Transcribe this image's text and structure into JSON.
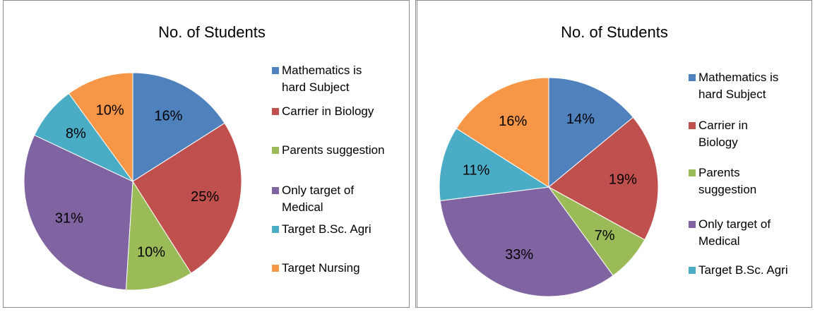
{
  "chart_data": [
    {
      "type": "pie",
      "title": "No. of Students",
      "categories": [
        "Mathematics is hard Subject",
        "Carrier in Biology",
        "Parents suggestion",
        "Only target of Medical",
        "Target B.Sc. Agri",
        "Target Nursing"
      ],
      "values": [
        16,
        25,
        10,
        31,
        8,
        10
      ],
      "value_labels": [
        "16%",
        "25%",
        "10%",
        "31%",
        "8%",
        "10%"
      ],
      "colors": [
        "#4f81bd",
        "#c0504d",
        "#9bbb59",
        "#8064a2",
        "#4bacc6",
        "#f79646"
      ]
    },
    {
      "type": "pie",
      "title": "No. of Students",
      "categories": [
        "Mathematics is hard Subject",
        "Carrier in Biology",
        "Parents suggestion",
        "Only target of Medical",
        "Target B.Sc. Agri",
        null
      ],
      "values": [
        14,
        19,
        7,
        33,
        11,
        16
      ],
      "value_labels": [
        "14%",
        "19%",
        "7%",
        "33%",
        "11%",
        "16%"
      ],
      "colors": [
        "#4f81bd",
        "#c0504d",
        "#9bbb59",
        "#8064a2",
        "#4bacc6",
        "#f79646"
      ]
    }
  ]
}
